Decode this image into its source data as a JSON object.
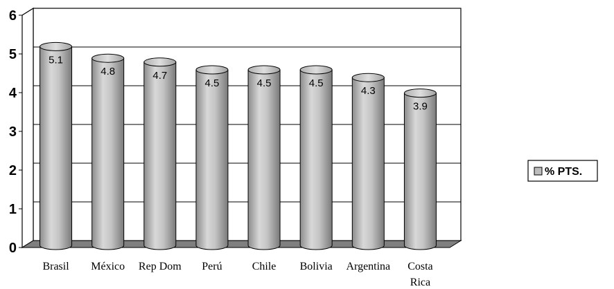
{
  "chart_data": {
    "type": "bar",
    "style": "3d-cylinder",
    "categories": [
      "Brasil",
      "México",
      "Rep Dom",
      "Perú",
      "Chile",
      "Bolivia",
      "Argentina",
      [
        "Costa",
        "Rica"
      ]
    ],
    "series": [
      {
        "name": "% PTS.",
        "values": [
          5.1,
          4.8,
          4.7,
          4.5,
          4.5,
          4.5,
          4.3,
          3.9
        ]
      }
    ],
    "data_labels": [
      "5.1",
      "4.8",
      "4.7",
      "4.5",
      "4.5",
      "4.5",
      "4.3",
      "3.9"
    ],
    "y_ticks": [
      "0",
      "1",
      "2",
      "3",
      "4",
      "5",
      "6"
    ],
    "ylim": [
      0,
      6
    ],
    "grid": true,
    "legend": {
      "placement": "right",
      "entries": [
        "% PTS."
      ]
    },
    "colors": {
      "bar": "#bdbdbd",
      "bar_dark": "#8a8a8a",
      "floor": "#7f7f7f"
    }
  }
}
